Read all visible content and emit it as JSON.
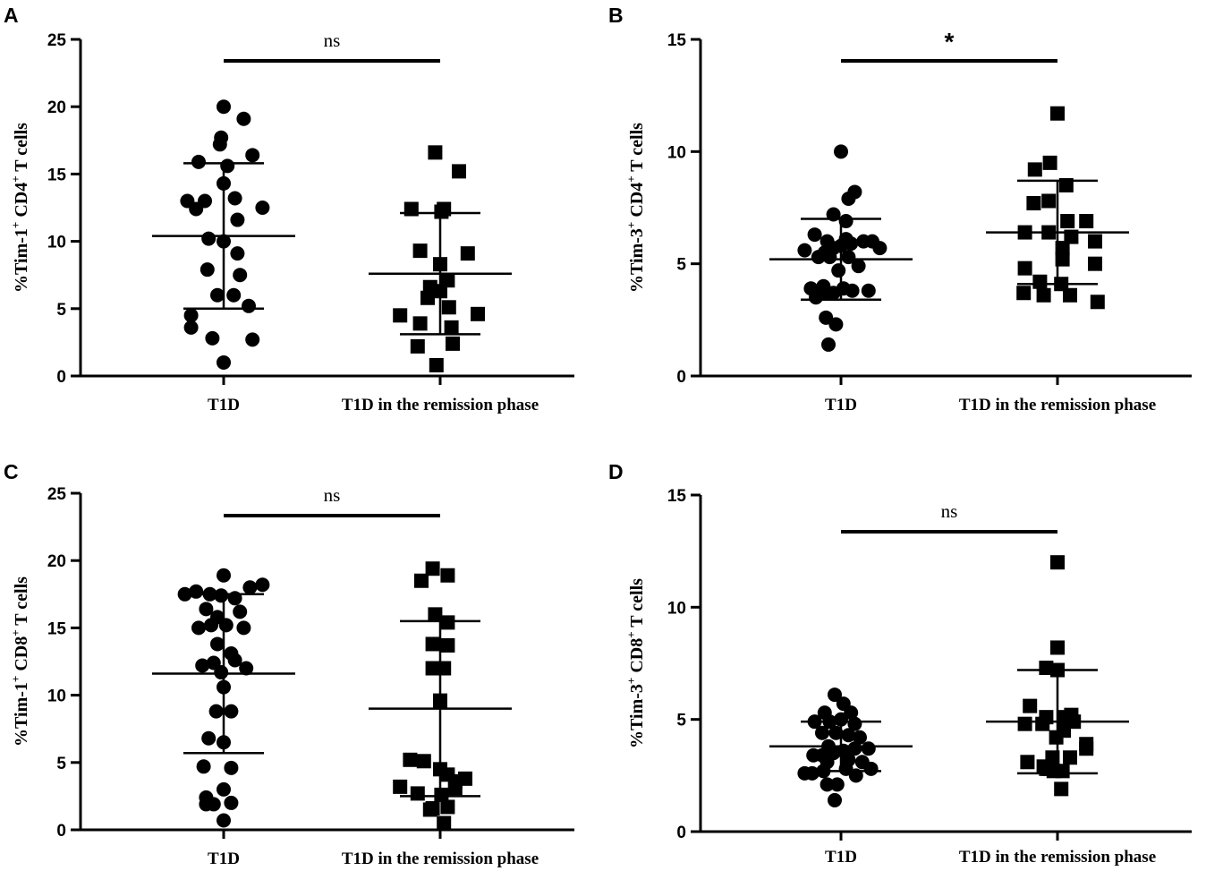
{
  "chart_data": [
    {
      "panel": "A",
      "type": "scatter",
      "categories": [
        "T1D",
        "T1D in the remission phase"
      ],
      "ylabel": {
        "prefix": "%Tim-1",
        "sup1": "+",
        "mid": " CD4",
        "sup2": "+",
        "suffix": " T cells"
      },
      "ylim": [
        0,
        25
      ],
      "yticks": [
        0,
        5,
        10,
        15,
        20,
        25
      ],
      "significance": "ns",
      "series": [
        {
          "name": "T1D",
          "marker": "circle",
          "mean": 10.4,
          "sd": 5.4,
          "points": [
            [
              0.0,
              20.0
            ],
            [
              0.8,
              19.1
            ],
            [
              -0.1,
              17.7
            ],
            [
              -0.15,
              17.2
            ],
            [
              -1.0,
              15.9
            ],
            [
              0.15,
              15.6
            ],
            [
              1.15,
              16.4
            ],
            [
              0.0,
              14.3
            ],
            [
              -1.45,
              13.0
            ],
            [
              -0.75,
              13.0
            ],
            [
              -1.1,
              12.4
            ],
            [
              0.45,
              13.2
            ],
            [
              1.55,
              12.5
            ],
            [
              0.55,
              11.6
            ],
            [
              -0.6,
              10.2
            ],
            [
              0.0,
              10.0
            ],
            [
              0.55,
              9.1
            ],
            [
              -0.65,
              7.9
            ],
            [
              0.65,
              7.5
            ],
            [
              -0.25,
              6.0
            ],
            [
              0.4,
              6.0
            ],
            [
              -1.3,
              4.5
            ],
            [
              1.0,
              5.2
            ],
            [
              -1.3,
              3.6
            ],
            [
              -0.45,
              2.8
            ],
            [
              1.15,
              2.7
            ],
            [
              0.0,
              1.0
            ]
          ]
        },
        {
          "name": "T1D in the remission phase",
          "marker": "square",
          "mean": 7.6,
          "sd": 4.5,
          "points": [
            [
              -0.2,
              16.6
            ],
            [
              0.75,
              15.2
            ],
            [
              -1.15,
              12.4
            ],
            [
              0.15,
              12.4
            ],
            [
              0.05,
              12.2
            ],
            [
              -0.8,
              9.3
            ],
            [
              1.1,
              9.1
            ],
            [
              0.0,
              8.3
            ],
            [
              -0.4,
              6.6
            ],
            [
              0.3,
              7.1
            ],
            [
              0.0,
              6.3
            ],
            [
              -0.5,
              5.8
            ],
            [
              0.35,
              5.1
            ],
            [
              -1.6,
              4.5
            ],
            [
              1.5,
              4.6
            ],
            [
              -0.8,
              3.9
            ],
            [
              0.45,
              3.6
            ],
            [
              -0.9,
              2.2
            ],
            [
              0.5,
              2.4
            ],
            [
              -0.15,
              0.8
            ]
          ]
        }
      ]
    },
    {
      "panel": "B",
      "type": "scatter",
      "categories": [
        "T1D",
        "T1D in the remission phase"
      ],
      "ylabel": {
        "prefix": "%Tim-3",
        "sup1": "+",
        "mid": " CD4",
        "sup2": "+",
        "suffix": " T cells"
      },
      "ylim": [
        0,
        15
      ],
      "yticks": [
        0,
        5,
        10,
        15
      ],
      "significance": "*",
      "series": [
        {
          "name": "T1D",
          "marker": "circle",
          "mean": 5.2,
          "sd": 1.8,
          "points": [
            [
              0.0,
              10.0
            ],
            [
              0.55,
              8.2
            ],
            [
              0.3,
              7.9
            ],
            [
              -0.3,
              7.2
            ],
            [
              0.2,
              6.9
            ],
            [
              -1.05,
              6.3
            ],
            [
              -0.55,
              6.0
            ],
            [
              0.2,
              6.1
            ],
            [
              0.9,
              6.0
            ],
            [
              1.25,
              6.0
            ],
            [
              0.4,
              5.9
            ],
            [
              1.55,
              5.7
            ],
            [
              -1.45,
              5.6
            ],
            [
              -0.65,
              5.5
            ],
            [
              -0.3,
              5.7
            ],
            [
              0.0,
              5.8
            ],
            [
              -0.9,
              5.3
            ],
            [
              -0.45,
              5.3
            ],
            [
              0.3,
              5.3
            ],
            [
              0.7,
              4.9
            ],
            [
              -0.1,
              4.7
            ],
            [
              -1.2,
              3.9
            ],
            [
              -0.7,
              4.0
            ],
            [
              0.1,
              3.9
            ],
            [
              0.45,
              3.8
            ],
            [
              -0.6,
              3.7
            ],
            [
              1.1,
              3.8
            ],
            [
              -1.0,
              3.5
            ],
            [
              -0.3,
              3.7
            ],
            [
              -0.6,
              2.6
            ],
            [
              -0.2,
              2.3
            ],
            [
              -0.5,
              1.4
            ]
          ]
        },
        {
          "name": "T1D in the remission phase",
          "marker": "square",
          "mean": 6.4,
          "sd": 2.3,
          "points": [
            [
              0.0,
              11.7
            ],
            [
              -0.3,
              9.5
            ],
            [
              -0.9,
              9.2
            ],
            [
              0.35,
              8.5
            ],
            [
              -0.35,
              7.8
            ],
            [
              -0.95,
              7.7
            ],
            [
              0.4,
              6.9
            ],
            [
              1.15,
              6.9
            ],
            [
              -1.3,
              6.4
            ],
            [
              -0.35,
              6.4
            ],
            [
              0.55,
              6.2
            ],
            [
              1.5,
              6.0
            ],
            [
              0.2,
              5.7
            ],
            [
              -1.3,
              4.8
            ],
            [
              0.2,
              5.2
            ],
            [
              1.5,
              5.0
            ],
            [
              -0.7,
              4.2
            ],
            [
              0.15,
              4.1
            ],
            [
              -1.35,
              3.7
            ],
            [
              -0.55,
              3.6
            ],
            [
              0.5,
              3.6
            ],
            [
              1.6,
              3.3
            ]
          ]
        }
      ]
    },
    {
      "panel": "C",
      "type": "scatter",
      "categories": [
        "T1D",
        "T1D in the remission phase"
      ],
      "ylabel": {
        "prefix": "%Tim-1",
        "sup1": "+",
        "mid": " CD8",
        "sup2": "+",
        "suffix": " T cells"
      },
      "ylim": [
        0,
        25
      ],
      "yticks": [
        0,
        5,
        10,
        15,
        20,
        25
      ],
      "significance": "ns",
      "series": [
        {
          "name": "T1D",
          "marker": "circle",
          "mean": 11.6,
          "sd": 5.9,
          "points": [
            [
              0.0,
              18.9
            ],
            [
              1.55,
              18.2
            ],
            [
              1.05,
              18.0
            ],
            [
              -1.55,
              17.5
            ],
            [
              -1.1,
              17.7
            ],
            [
              -0.55,
              17.5
            ],
            [
              -0.1,
              17.4
            ],
            [
              0.45,
              17.2
            ],
            [
              0.65,
              16.2
            ],
            [
              -0.7,
              16.4
            ],
            [
              -0.25,
              15.8
            ],
            [
              -1.0,
              15.0
            ],
            [
              -0.5,
              15.2
            ],
            [
              0.1,
              15.2
            ],
            [
              0.8,
              15.0
            ],
            [
              -0.25,
              13.8
            ],
            [
              0.3,
              13.1
            ],
            [
              0.45,
              12.6
            ],
            [
              -0.4,
              12.4
            ],
            [
              0.9,
              12.0
            ],
            [
              -0.85,
              12.2
            ],
            [
              -0.1,
              11.7
            ],
            [
              0.0,
              10.6
            ],
            [
              0.3,
              8.8
            ],
            [
              -0.3,
              8.8
            ],
            [
              -0.6,
              6.8
            ],
            [
              0.0,
              6.5
            ],
            [
              -0.8,
              4.7
            ],
            [
              0.3,
              4.6
            ],
            [
              0.0,
              3.0
            ],
            [
              -0.7,
              2.4
            ],
            [
              0.3,
              2.0
            ],
            [
              -0.4,
              1.9
            ],
            [
              -0.7,
              1.9
            ],
            [
              0.0,
              0.7
            ]
          ]
        },
        {
          "name": "T1D in the remission phase",
          "marker": "square",
          "mean": 9.0,
          "sd": 6.5,
          "points": [
            [
              -0.3,
              19.4
            ],
            [
              0.3,
              18.9
            ],
            [
              -0.75,
              18.5
            ],
            [
              -0.2,
              16.0
            ],
            [
              0.3,
              15.4
            ],
            [
              0.3,
              13.7
            ],
            [
              -0.3,
              13.8
            ],
            [
              0.15,
              12.0
            ],
            [
              -0.3,
              12.0
            ],
            [
              0.0,
              9.6
            ],
            [
              -1.2,
              5.2
            ],
            [
              -0.65,
              5.1
            ],
            [
              0.0,
              4.5
            ],
            [
              0.6,
              3.6
            ],
            [
              0.3,
              4.1
            ],
            [
              1.0,
              3.8
            ],
            [
              -1.6,
              3.2
            ],
            [
              0.6,
              3.1
            ],
            [
              -0.9,
              2.7
            ],
            [
              0.05,
              2.6
            ],
            [
              -0.4,
              1.5
            ],
            [
              0.3,
              1.7
            ],
            [
              -0.3,
              1.6
            ],
            [
              0.15,
              0.5
            ]
          ]
        }
      ]
    },
    {
      "panel": "D",
      "type": "scatter",
      "categories": [
        "T1D",
        "T1D in the remission phase"
      ],
      "ylabel": {
        "prefix": "%Tim-3",
        "sup1": "+",
        "mid": " CD8",
        "sup2": "+",
        "suffix": " T cells"
      },
      "ylim": [
        0,
        15
      ],
      "yticks": [
        0,
        5,
        10,
        15
      ],
      "significance": "ns",
      "series": [
        {
          "name": "T1D",
          "marker": "circle",
          "mean": 3.8,
          "sd": 1.1,
          "points": [
            [
              -0.25,
              6.1
            ],
            [
              0.1,
              5.7
            ],
            [
              -0.65,
              5.3
            ],
            [
              0.4,
              5.3
            ],
            [
              -1.05,
              4.9
            ],
            [
              -0.45,
              4.9
            ],
            [
              0.0,
              5.0
            ],
            [
              0.55,
              4.8
            ],
            [
              -0.75,
              4.4
            ],
            [
              -0.2,
              4.4
            ],
            [
              0.3,
              4.3
            ],
            [
              0.75,
              4.2
            ],
            [
              -0.5,
              3.8
            ],
            [
              0.1,
              3.6
            ],
            [
              0.55,
              3.7
            ],
            [
              1.1,
              3.7
            ],
            [
              -1.1,
              3.4
            ],
            [
              -0.75,
              3.4
            ],
            [
              -0.3,
              3.5
            ],
            [
              0.3,
              3.2
            ],
            [
              0.85,
              3.1
            ],
            [
              -0.55,
              3.1
            ],
            [
              -1.45,
              2.6
            ],
            [
              -1.15,
              2.6
            ],
            [
              -0.7,
              2.7
            ],
            [
              0.2,
              2.8
            ],
            [
              0.6,
              2.5
            ],
            [
              1.2,
              2.8
            ],
            [
              -0.55,
              2.1
            ],
            [
              -0.15,
              2.1
            ],
            [
              -0.25,
              1.4
            ]
          ]
        },
        {
          "name": "T1D in the remission phase",
          "marker": "square",
          "mean": 4.9,
          "sd": 2.3,
          "points": [
            [
              0.0,
              12.0
            ],
            [
              0.0,
              8.2
            ],
            [
              -0.45,
              7.3
            ],
            [
              0.0,
              7.2
            ],
            [
              -1.1,
              5.6
            ],
            [
              0.55,
              5.2
            ],
            [
              -0.45,
              5.1
            ],
            [
              0.3,
              5.1
            ],
            [
              0.65,
              4.9
            ],
            [
              -1.3,
              4.8
            ],
            [
              -0.6,
              4.8
            ],
            [
              0.25,
              4.5
            ],
            [
              -0.05,
              4.2
            ],
            [
              1.15,
              3.9
            ],
            [
              1.15,
              3.7
            ],
            [
              0.5,
              3.3
            ],
            [
              -1.2,
              3.1
            ],
            [
              -0.2,
              3.3
            ],
            [
              -0.55,
              2.9
            ],
            [
              -0.45,
              2.8
            ],
            [
              -0.15,
              2.7
            ],
            [
              -0.35,
              2.8
            ],
            [
              0.2,
              2.7
            ],
            [
              0.15,
              1.9
            ]
          ]
        }
      ]
    }
  ]
}
